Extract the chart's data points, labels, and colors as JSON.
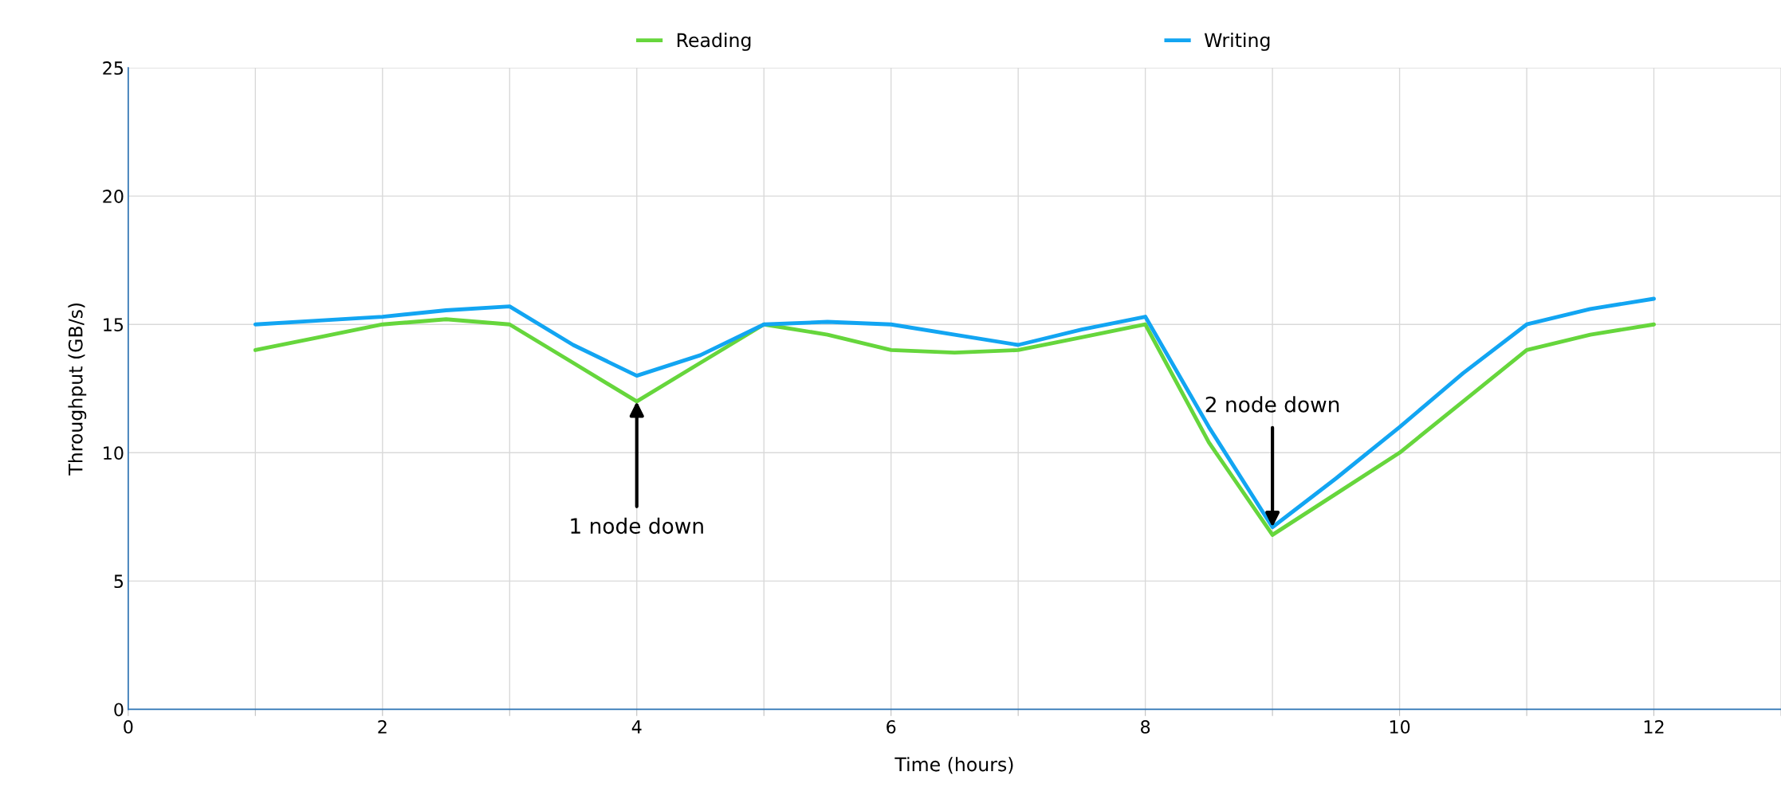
{
  "chart_data": {
    "type": "line",
    "xlabel": "Time (hours)",
    "ylabel": "Throughput (GB/s)",
    "x": [
      1,
      1.5,
      2,
      2.5,
      3,
      3.5,
      4,
      4.5,
      5,
      5.5,
      6,
      6.5,
      7,
      7.5,
      8,
      8.5,
      9,
      9.5,
      10,
      10.5,
      11,
      11.5,
      12
    ],
    "series": [
      {
        "name": "Reading",
        "color": "#66d63c",
        "values": [
          14,
          14.5,
          15,
          15.2,
          15,
          13.5,
          12,
          13.5,
          15,
          14.6,
          14,
          13.9,
          14,
          14.5,
          15,
          10.4,
          6.8,
          8.4,
          10,
          12,
          14,
          14.6,
          15
        ]
      },
      {
        "name": "Writing",
        "color": "#12a5f2",
        "values": [
          15,
          15.15,
          15.3,
          15.55,
          15.7,
          14.2,
          13,
          13.8,
          15,
          15.1,
          15,
          14.6,
          14.2,
          14.8,
          15.3,
          11,
          7.1,
          9,
          11,
          13.1,
          15,
          15.6,
          16
        ]
      }
    ],
    "xlim": [
      0,
      13
    ],
    "xticks": [
      0,
      {
        "value": 1,
        "label": null
      },
      2,
      {
        "value": 3,
        "label": null
      },
      4,
      {
        "value": 5,
        "label": null
      },
      6,
      {
        "value": 7,
        "label": null
      },
      8,
      {
        "value": 9,
        "label": null
      },
      10,
      {
        "value": 11,
        "label": null
      },
      12,
      {
        "value": 13,
        "label": null
      }
    ],
    "ylim": [
      0,
      25
    ],
    "yticks": [
      0,
      5,
      10,
      15,
      20,
      25
    ],
    "grid": true,
    "legend": "top",
    "marker": "none",
    "line_style": "solid",
    "annotations": [
      {
        "text": "1 node down",
        "x": 4,
        "y": 12
      },
      {
        "text": "2 node down",
        "x": 9,
        "y": 7.1
      }
    ]
  }
}
